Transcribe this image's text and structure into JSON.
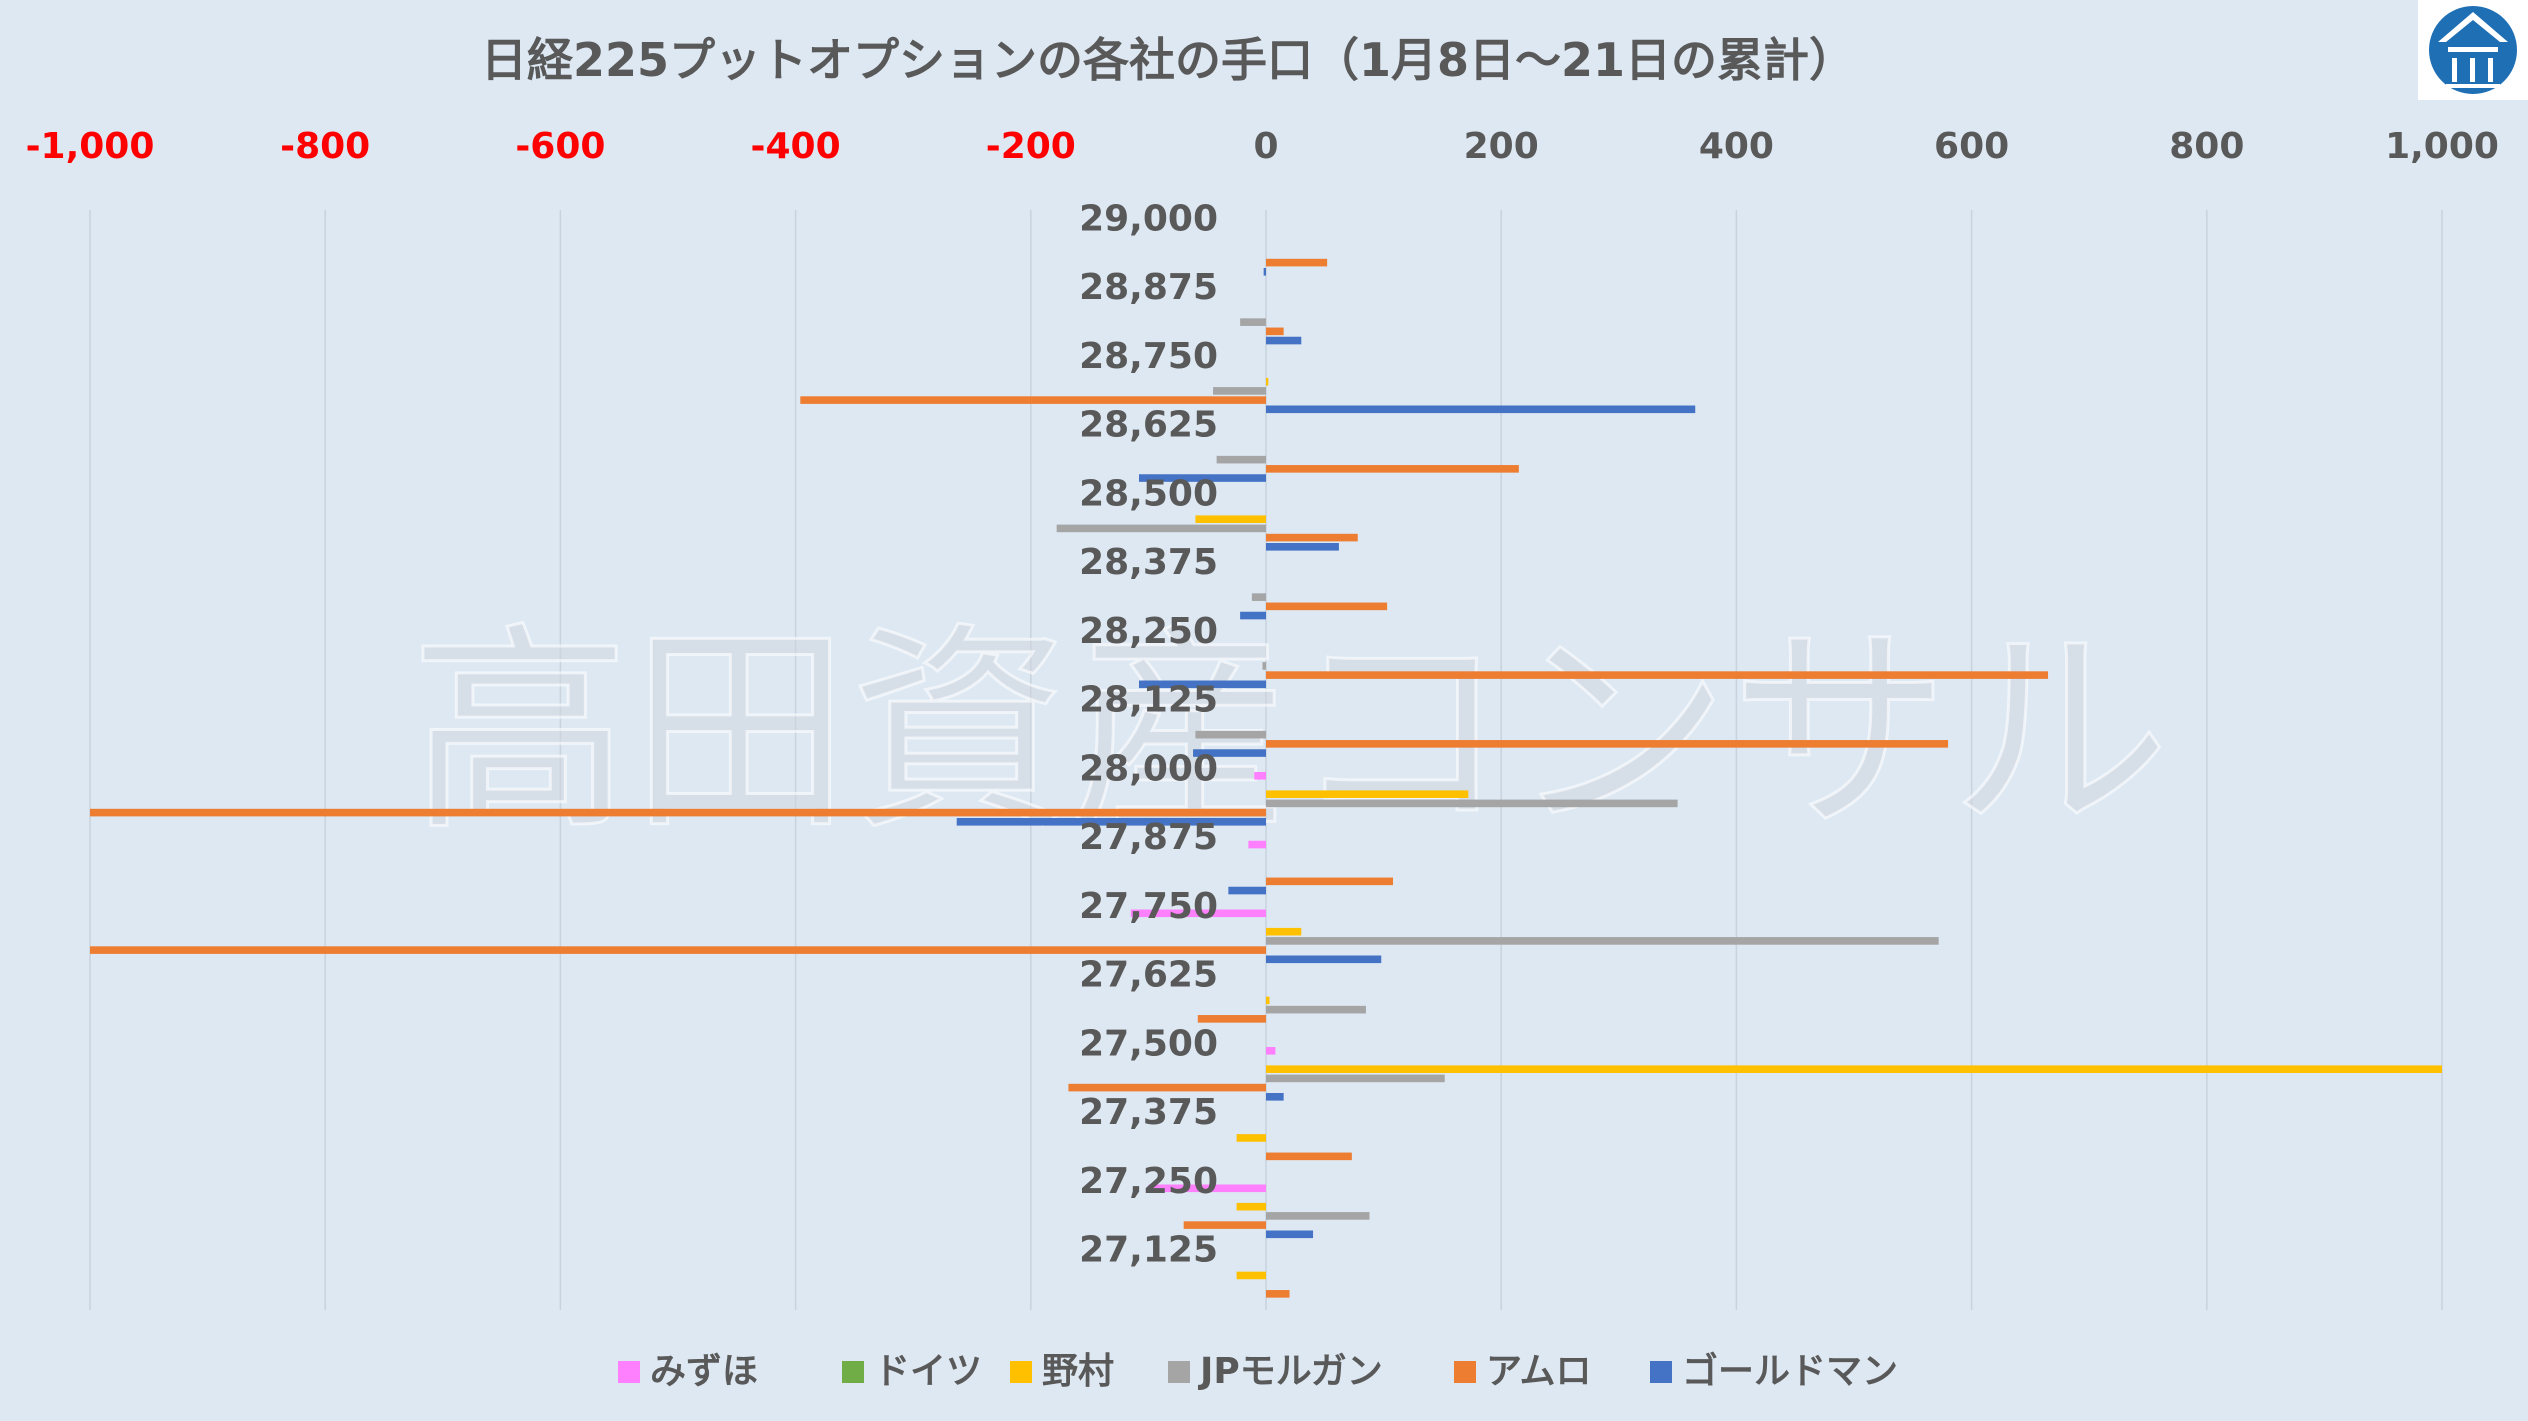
{
  "chart_data": {
    "type": "bar",
    "orientation": "horizontal",
    "title": "日経225プットオプションの各社の手口（1月8日～21日の累計）",
    "watermark": "高田資産コンサル",
    "xlim": [
      -1000,
      1000
    ],
    "xticks": [
      -1000,
      -800,
      -600,
      -400,
      -200,
      0,
      200,
      400,
      600,
      800,
      1000
    ],
    "xtick_labels": [
      "-1,000",
      "-800",
      "-600",
      "-400",
      "-200",
      "0",
      "200",
      "400",
      "600",
      "800",
      "1,000"
    ],
    "negative_tick_color": "#ff0000",
    "positive_tick_color": "#595959",
    "grid": true,
    "legend_position": "bottom",
    "categories": [
      "29,000",
      "28,875",
      "28,750",
      "28,625",
      "28,500",
      "28,375",
      "28,250",
      "28,125",
      "28,000",
      "27,875",
      "27,750",
      "27,625",
      "27,500",
      "27,375",
      "27,250",
      "27,125"
    ],
    "series": [
      {
        "name": "みずほ",
        "color": "#ff80ff",
        "values": [
          0,
          0,
          0,
          0,
          0,
          0,
          0,
          0,
          -10,
          -15,
          -115,
          0,
          8,
          0,
          -100,
          0
        ]
      },
      {
        "name": "ドイツ",
        "color": "#70ad47",
        "values": [
          0,
          0,
          0,
          0,
          0,
          0,
          0,
          0,
          0,
          0,
          0,
          0,
          0,
          0,
          0,
          0
        ]
      },
      {
        "name": "野村",
        "color": "#ffc000",
        "values": [
          0,
          0,
          2,
          0,
          -60,
          0,
          0,
          0,
          172,
          0,
          30,
          3,
          1000,
          -25,
          -25,
          -25
        ]
      },
      {
        "name": "JPモルガン",
        "color": "#a5a5a5",
        "values": [
          0,
          -22,
          -45,
          -42,
          -178,
          -12,
          -3,
          -60,
          350,
          0,
          572,
          85,
          152,
          0,
          88,
          0
        ]
      },
      {
        "name": "アムロ",
        "color": "#ed7d31",
        "values": [
          52,
          15,
          -396,
          215,
          78,
          103,
          665,
          580,
          -1000,
          108,
          -1000,
          -58,
          -168,
          73,
          -70,
          20
        ]
      },
      {
        "name": "ゴールドマン",
        "color": "#4472c4",
        "values": [
          -2,
          30,
          365,
          -108,
          62,
          -22,
          -108,
          -62,
          -263,
          -32,
          98,
          0,
          15,
          0,
          40,
          0
        ]
      }
    ]
  }
}
